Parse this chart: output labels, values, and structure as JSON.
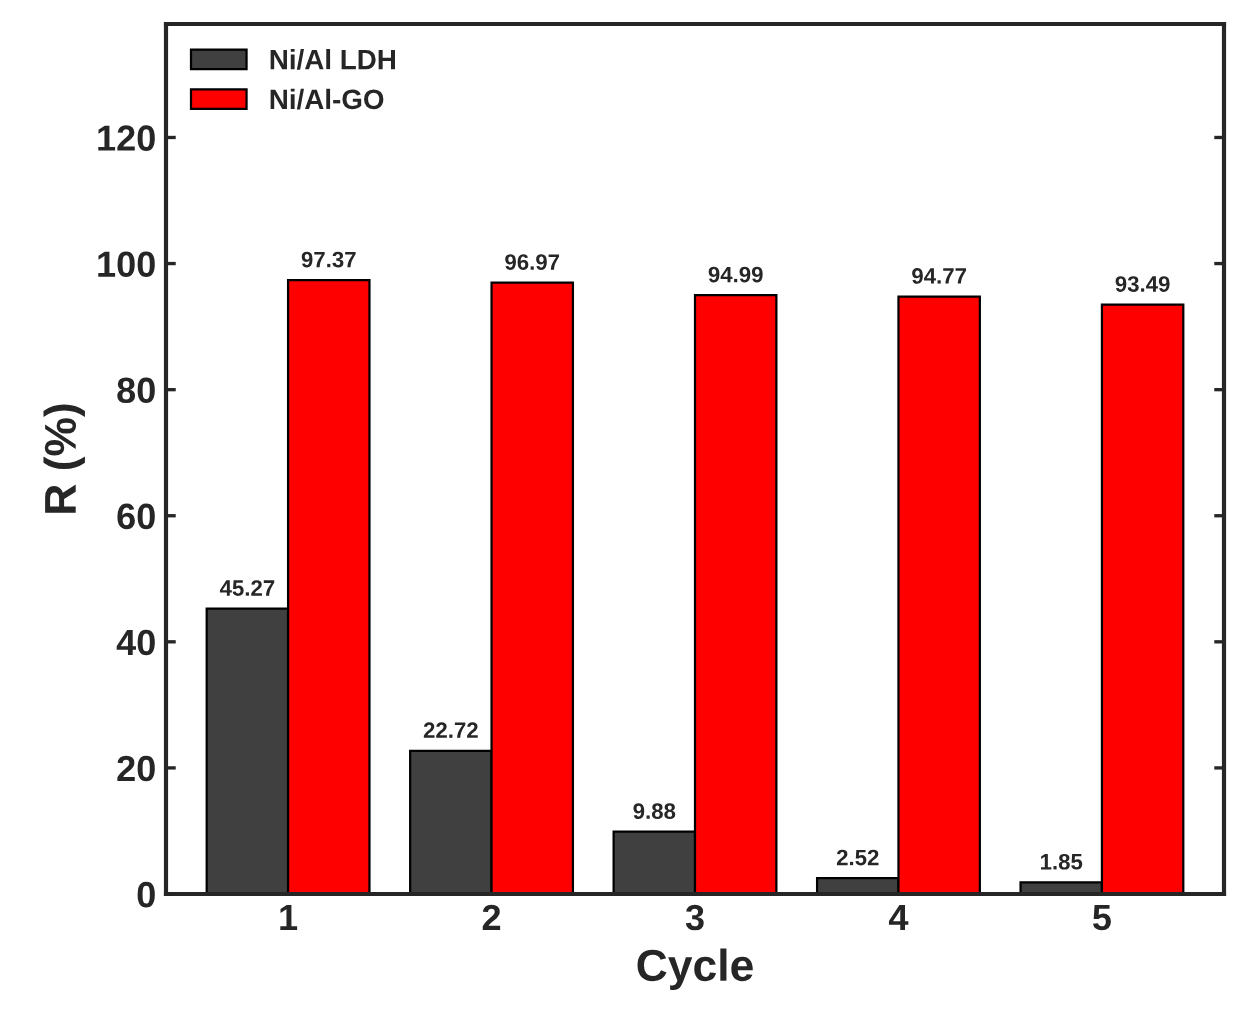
{
  "chart_data": {
    "type": "bar",
    "xlabel": "Cycle",
    "ylabel": "R (%)",
    "categories": [
      "1",
      "2",
      "3",
      "4",
      "5"
    ],
    "series": [
      {
        "name": "Ni/Al LDH",
        "color": "#404040",
        "values": [
          45.27,
          22.72,
          9.88,
          2.52,
          1.85
        ]
      },
      {
        "name": "Ni/Al-GO",
        "color": "#ff0000",
        "values": [
          97.37,
          96.97,
          94.99,
          94.77,
          93.49
        ]
      }
    ],
    "ylim": [
      0,
      138
    ],
    "yticks": [
      0,
      20,
      40,
      60,
      80,
      100,
      120
    ],
    "data_labels": true,
    "legend": "top left",
    "grid": false
  }
}
